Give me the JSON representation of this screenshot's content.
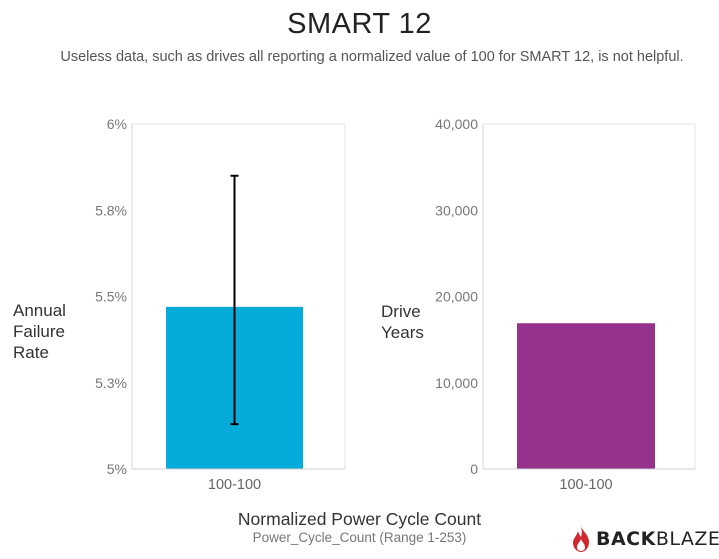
{
  "header": {
    "title": "SMART 12",
    "subtitle": "Useless data, such as drives all reporting a normalized value of 100 for SMART 12, is not helpful."
  },
  "brand": {
    "name_bold": "BACK",
    "name_light": "BLAZE",
    "icon": "flame-icon",
    "color": "#d0262d"
  },
  "chart_data": [
    {
      "type": "bar",
      "categories": [
        "100-100"
      ],
      "values": [
        5.47
      ],
      "error_bars": [
        {
          "low": 5.13,
          "high": 5.85
        }
      ],
      "ylabel": [
        "Annual",
        "Failure",
        "Rate"
      ],
      "yticks": [
        "5%",
        "5.3%",
        "5.5%",
        "5.8%",
        "6%"
      ],
      "ylim": [
        5,
        6
      ],
      "grid": false,
      "color": "#06acd9"
    },
    {
      "type": "bar",
      "categories": [
        "100-100"
      ],
      "values": [
        16900
      ],
      "ylabel": [
        "Drive",
        "Years"
      ],
      "yticks": [
        "0",
        "10,000",
        "20,000",
        "30,000",
        "40,000"
      ],
      "ylim": [
        0,
        40000
      ],
      "grid": false,
      "color": "#94328c"
    }
  ],
  "xaxis": {
    "title": "Normalized Power Cycle Count",
    "subtitle": "Power_Cycle_Count (Range 1-253)"
  }
}
